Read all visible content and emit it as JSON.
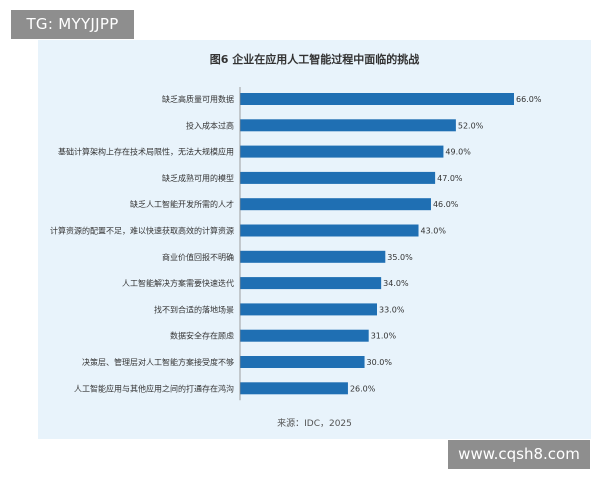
{
  "top_tag": "TG: MYYJJPP",
  "watermark": "www.cqsh8.com",
  "colors": {
    "bar": "#1f6fb3",
    "panel": "#e8f3fb"
  },
  "chart_data": {
    "type": "bar",
    "orientation": "horizontal",
    "title": "图6 企业在应用人工智能过程中面临的挑战",
    "source": "来源：IDC，2025",
    "categories": [
      "缺乏高质量可用数据",
      "投入成本过高",
      "基础计算架构上存在技术局限性，无法大规模应用",
      "缺乏成熟可用的模型",
      "缺乏人工智能开发所需的人才",
      "计算资源的配置不足，难以快速获取高效的计算资源",
      "商业价值回报不明确",
      "人工智能解决方案需要快速迭代",
      "找不到合适的落地场景",
      "数据安全存在顾虑",
      "决策层、管理层对人工智能方案接受度不够",
      "人工智能应用与其他应用之间的打通存在鸿沟"
    ],
    "values": [
      66.0,
      52.0,
      49.0,
      47.0,
      46.0,
      43.0,
      35.0,
      34.0,
      33.0,
      31.0,
      30.0,
      26.0
    ],
    "value_labels": [
      "66.0%",
      "52.0%",
      "49.0%",
      "47.0%",
      "46.0%",
      "43.0%",
      "35.0%",
      "34.0%",
      "33.0%",
      "31.0%",
      "30.0%",
      "26.0%"
    ],
    "xlim": [
      0,
      66
    ]
  }
}
